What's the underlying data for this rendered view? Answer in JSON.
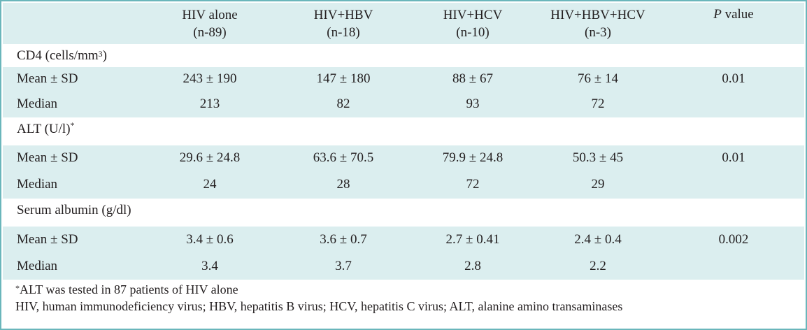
{
  "header": {
    "columns": [
      {
        "line1": "HIV alone",
        "line2": "(n-89)"
      },
      {
        "line1": "HIV+HBV",
        "line2": "(n-18)"
      },
      {
        "line1": "HIV+HCV",
        "line2": "(n-10)"
      },
      {
        "line1": "HIV+HBV+HCV",
        "line2": "(n-3)"
      }
    ],
    "p_value_italic": "P",
    "p_value_rest": " value"
  },
  "sections": [
    {
      "title": "CD4 (cells/mm",
      "title_sup": "3",
      "title_after": ")",
      "rows": [
        {
          "label": "Mean ± SD",
          "values": [
            "243 ± 190",
            "147 ± 180",
            "88 ± 67",
            "76 ± 14"
          ],
          "p": "0.01"
        },
        {
          "label": "Median",
          "values": [
            "213",
            "82",
            "93",
            "72"
          ],
          "p": ""
        }
      ]
    },
    {
      "title": "ALT (U/l)",
      "title_sup": "*",
      "title_after": "",
      "rows": [
        {
          "label": "Mean ± SD",
          "values": [
            "29.6 ± 24.8",
            "63.6 ± 70.5",
            "79.9 ± 24.8",
            "50.3 ± 45"
          ],
          "p": "0.01"
        },
        {
          "label": "Median",
          "values": [
            "24",
            "28",
            "72",
            "29"
          ],
          "p": ""
        }
      ]
    },
    {
      "title": "Serum albumin (g/dl)",
      "title_sup": "",
      "title_after": "",
      "rows": [
        {
          "label": "Mean ± SD",
          "values": [
            "3.4 ± 0.6",
            "3.6 ± 0.7",
            "2.7 ± 0.41",
            "2.4 ± 0.4"
          ],
          "p": "0.002"
        },
        {
          "label": "Median",
          "values": [
            "3.4",
            "3.7",
            "2.8",
            "2.2"
          ],
          "p": ""
        }
      ]
    }
  ],
  "footnotes": {
    "note1_sup": "*",
    "note1_text": "ALT was tested in 87 patients of HIV alone",
    "note2_text": "HIV, human immunodeficiency virus; HBV, hepatitis B virus; HCV, hepatitis C virus; ALT, alanine amino transaminases"
  }
}
